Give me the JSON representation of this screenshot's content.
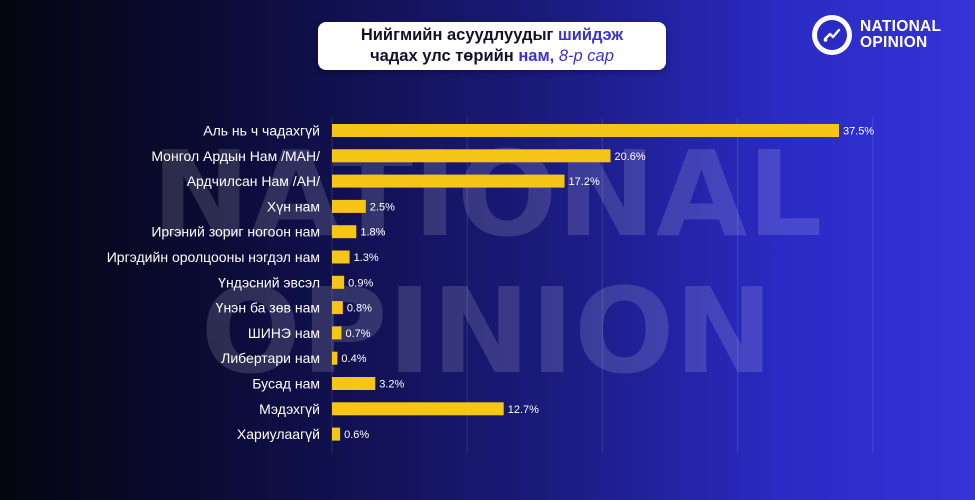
{
  "title": {
    "line1_part1": "Нийгмийн асуудлуудыг",
    "line1_part2": "шийдэж",
    "line2_part1": "чадах улс төрийн",
    "line2_part2": "нам,",
    "line2_part3": "8-р сар"
  },
  "brand": {
    "line1": "NATIONAL",
    "line2": "OPINION",
    "logo_icon": "chart-trend-icon"
  },
  "watermark": {
    "line1": "NATIONAL",
    "line2": "OPINION"
  },
  "colors": {
    "bar": "#f5c518",
    "accent": "#3a32d6"
  },
  "chart_data": {
    "type": "bar",
    "orientation": "horizontal",
    "title": "Нийгмийн асуудлуудыг шийдэж чадах улс төрийн нам, 8-р сар",
    "unit": "%",
    "xlim": [
      0,
      40
    ],
    "grid": true,
    "categories": [
      "Аль нь ч чадахгүй",
      "Монгол Ардын Нам /МАН/",
      "Ардчилсан Нам /АН/",
      "Хүн нам",
      "Иргэний зориг ногоон нам",
      "Иргэдийн оролцооны нэгдэл нам",
      "Үндэсний эвсэл",
      "Үнэн ба зөв нам",
      "ШИНЭ нам",
      "Либертари нам",
      "Бусад нам",
      "Мэдэхгүй",
      "Хариулаагүй"
    ],
    "values": [
      37.5,
      20.6,
      17.2,
      2.5,
      1.8,
      1.3,
      0.9,
      0.8,
      0.7,
      0.4,
      3.2,
      12.7,
      0.6
    ],
    "value_labels": [
      "37.5%",
      "20.6%",
      "17.2%",
      "2.5%",
      "1.8%",
      "1.3%",
      "0.9%",
      "0.8%",
      "0.7%",
      "0.4%",
      "3.2%",
      "12.7%",
      "0.6%"
    ]
  }
}
